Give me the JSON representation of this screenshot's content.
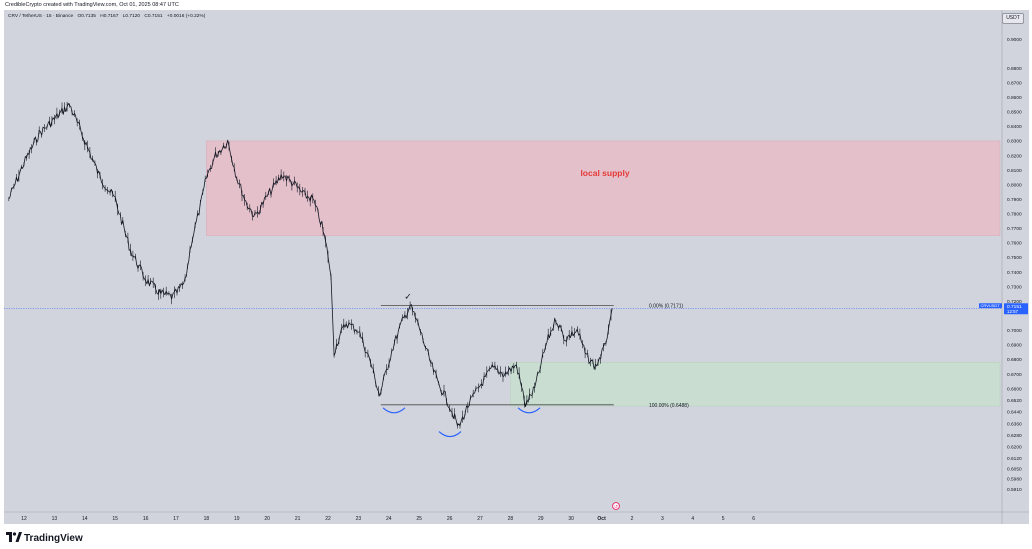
{
  "header": {
    "caption": "CredibleCrypto created with TradingView.com, Oct 01, 2025 08:47 UTC"
  },
  "symbol_bar": {
    "name": "CRV / TetherUS · 15 · Binance",
    "open": "O0.7135",
    "high": "H0.7167",
    "low": "L0.7120",
    "close": "C0.7151",
    "change": "+0.0016 (+0.22%)"
  },
  "currency_button": "USDT",
  "price_tag": {
    "symbol": "CRVUSDT",
    "price": "0.7151",
    "countdown": "12:57"
  },
  "colors": {
    "background": "#d1d4dc",
    "supply_zone": "#e8bcc8",
    "demand_zone": "#c8dfcf",
    "supply_label": "#e53935",
    "price_line": "#2962ff",
    "tag_bg": "#2962ff",
    "fib_line": "#4a4a4a",
    "candle": "#131722",
    "arc": "#2962ff"
  },
  "labels": {
    "supply_zone": "local supply",
    "fib_top": "0.00% (0.7171)",
    "fib_bottom": "100.00% (0.6488)",
    "check_mark": "✓"
  },
  "footer": {
    "brand": "TradingView",
    "logo_icon": "tradingview-logo-icon"
  },
  "chart_data": {
    "type": "line",
    "title": "CRV / TetherUS · 15 · Binance",
    "x_ticks": [
      "12",
      "13",
      "14",
      "15",
      "16",
      "17",
      "18",
      "19",
      "20",
      "21",
      "22",
      "23",
      "24",
      "25",
      "26",
      "27",
      "28",
      "29",
      "30",
      "Oct",
      "2",
      "3",
      "4",
      "5",
      "6"
    ],
    "y_ticks": [
      "0.9000",
      "0.8800",
      "0.8700",
      "0.8600",
      "0.8500",
      "0.8400",
      "0.8300",
      "0.8200",
      "0.8100",
      "0.8000",
      "0.7900",
      "0.7800",
      "0.7700",
      "0.7600",
      "0.7500",
      "0.7400",
      "0.7300",
      "0.7200",
      "0.7000",
      "0.6900",
      "0.6800",
      "0.6700",
      "0.6600",
      "0.6520",
      "0.6440",
      "0.6360",
      "0.6280",
      "0.6200",
      "0.6120",
      "0.6050",
      "0.5980",
      "0.5910"
    ],
    "ylim": [
      0.5865,
      0.904
    ],
    "xlim_days": [
      11.45,
      44.4
    ],
    "series": [
      {
        "x": [
          11.5,
          12.0,
          12.5,
          13.0,
          13.5,
          14.0,
          14.5,
          15.0,
          15.5,
          16.0,
          16.5,
          16.9,
          17.3,
          17.5,
          17.8,
          18.0,
          18.3,
          18.7,
          19.0,
          19.3,
          19.6,
          20.0,
          20.5,
          20.9,
          21.2,
          21.5,
          21.8,
          22.0,
          22.1,
          22.2,
          22.4,
          22.6,
          23.0,
          23.4,
          23.7,
          24.1,
          24.4,
          24.7,
          25.0,
          25.3,
          25.6,
          25.9,
          26.3,
          26.6,
          27.0,
          27.4,
          27.8,
          28.2,
          28.5,
          28.8,
          29.2,
          29.5,
          29.8,
          30.2,
          30.5,
          30.8,
          31.1,
          31.35
        ],
        "y": [
          0.79,
          0.815,
          0.835,
          0.845,
          0.855,
          0.83,
          0.805,
          0.79,
          0.755,
          0.735,
          0.725,
          0.723,
          0.733,
          0.76,
          0.785,
          0.805,
          0.82,
          0.83,
          0.805,
          0.788,
          0.778,
          0.792,
          0.807,
          0.8,
          0.793,
          0.79,
          0.772,
          0.752,
          0.735,
          0.685,
          0.697,
          0.705,
          0.7,
          0.678,
          0.655,
          0.686,
          0.704,
          0.7171,
          0.702,
          0.682,
          0.665,
          0.653,
          0.633,
          0.648,
          0.662,
          0.674,
          0.67,
          0.676,
          0.6488,
          0.66,
          0.692,
          0.708,
          0.694,
          0.7,
          0.682,
          0.675,
          0.688,
          0.7151
        ]
      }
    ],
    "zones": [
      {
        "name": "local supply",
        "x_start": 18.0,
        "x_end": 44.4,
        "y_low": 0.765,
        "y_high": 0.83
      },
      {
        "name": "demand",
        "x_start": 28.0,
        "x_end": 44.4,
        "y_low": 0.648,
        "y_high": 0.678
      }
    ],
    "fib": {
      "x_start": 24.0,
      "x_end": 31.4,
      "level_0": 0.7171,
      "level_100": 0.6488
    },
    "last_price": 0.7151,
    "grid": false,
    "legend": "none"
  }
}
